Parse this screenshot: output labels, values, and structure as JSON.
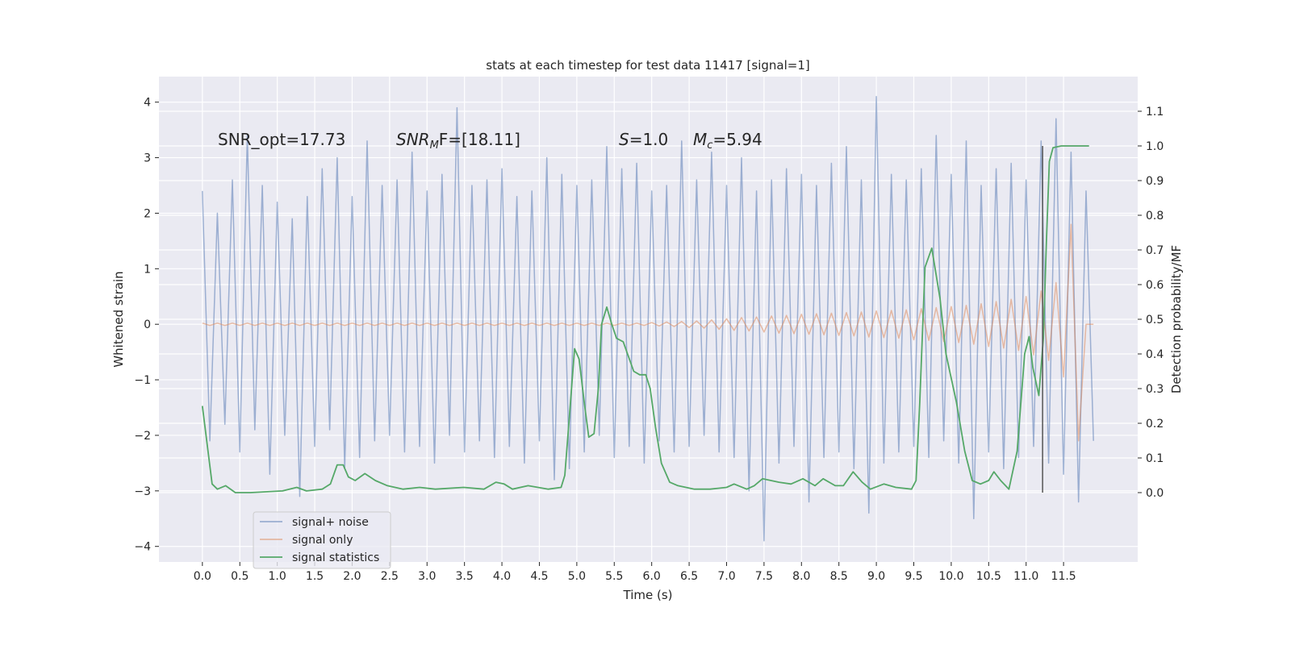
{
  "chart_data": {
    "type": "line",
    "title": "stats at each timestep for test data 11417 [signal=1]",
    "xlabel": "Time (s)",
    "ylabel": "Whitened strain",
    "y2label": "Detection probability/MF",
    "annotations": [
      [
        "SNR_opt=17.73"
      ],
      [
        "SNR",
        "M",
        "F=[18.11]"
      ],
      [
        "S",
        "=1.0"
      ],
      [
        "M",
        "c",
        "=5.94"
      ]
    ],
    "xlim": [
      -0.58,
      12.49
    ],
    "ylim": [
      -4.28,
      4.46
    ],
    "y2lim": [
      -0.2,
      1.2
    ],
    "xticks": [
      {
        "value": 0,
        "label": "0.0"
      },
      0.5,
      {
        "value": 1,
        "label": "1.0"
      },
      1.5,
      {
        "value": 2,
        "label": "2.0"
      },
      2.5,
      {
        "value": 3,
        "label": "3.0"
      },
      3.5,
      {
        "value": 4,
        "label": "4.0"
      },
      4.5,
      {
        "value": 5,
        "label": "5.0"
      },
      5.5,
      {
        "value": 6,
        "label": "6.0"
      },
      6.5,
      {
        "value": 7,
        "label": "7.0"
      },
      7.5,
      {
        "value": 8,
        "label": "8.0"
      },
      8.5,
      {
        "value": 9,
        "label": "9.0"
      },
      9.5,
      {
        "value": 10,
        "label": "10.0"
      },
      10.5,
      {
        "value": 11,
        "label": "11.0"
      },
      11.5
    ],
    "yticks": [
      {
        "value": -4,
        "label": "−4"
      },
      {
        "value": -3,
        "label": "−3"
      },
      {
        "value": -2,
        "label": "−2"
      },
      {
        "value": -1,
        "label": "−1"
      },
      0,
      1,
      2,
      3,
      4
    ],
    "y2ticks": [
      {
        "value": 0,
        "label": "0.0"
      },
      0.1,
      0.2,
      0.3,
      0.4,
      0.5,
      0.6,
      0.7,
      0.8,
      0.9,
      {
        "value": 1,
        "label": "1.0"
      },
      1.1
    ],
    "grid": true,
    "legend": "lower left",
    "vline_x": 11.22,
    "x": [
      0,
      0.1,
      0.2,
      0.3,
      0.4,
      0.5,
      0.6,
      0.7,
      0.8,
      0.9,
      1,
      1.1,
      1.2,
      1.3,
      1.4,
      1.5,
      1.6,
      1.7,
      1.8,
      1.9,
      2,
      2.1,
      2.2,
      2.3,
      2.4,
      2.5,
      2.6,
      2.7,
      2.8,
      2.9,
      3,
      3.1,
      3.2,
      3.3,
      3.4,
      3.5,
      3.6,
      3.7,
      3.8,
      3.9,
      4,
      4.1,
      4.2,
      4.3,
      4.4,
      4.5,
      4.6,
      4.7,
      4.8,
      4.9,
      5,
      5.1,
      5.2,
      5.3,
      5.4,
      5.5,
      5.6,
      5.7,
      5.8,
      5.9,
      6,
      6.1,
      6.2,
      6.3,
      6.4,
      6.5,
      6.6,
      6.7,
      6.8,
      6.9,
      7,
      7.1,
      7.2,
      7.3,
      7.4,
      7.5,
      7.6,
      7.7,
      7.8,
      7.9,
      8,
      8.1,
      8.2,
      8.3,
      8.4,
      8.5,
      8.6,
      8.7,
      8.8,
      8.9,
      9,
      9.1,
      9.2,
      9.3,
      9.4,
      9.5,
      9.6,
      9.7,
      9.8,
      9.9,
      10,
      10.1,
      10.2,
      10.3,
      10.4,
      10.5,
      10.6,
      10.7,
      10.8,
      10.9,
      11,
      11.1,
      11.2,
      11.3,
      11.4,
      11.5,
      11.6,
      11.7,
      11.8,
      11.9
    ],
    "series": [
      {
        "name": "signal+ noise",
        "color": "#4c72b0",
        "values": [
          2.4,
          -2.1,
          2.0,
          -1.8,
          2.6,
          -2.3,
          3.4,
          -1.9,
          2.5,
          -2.7,
          2.2,
          -2.0,
          1.9,
          -3.1,
          2.3,
          -2.2,
          2.8,
          -1.9,
          3.0,
          -2.6,
          2.3,
          -2.4,
          3.3,
          -2.1,
          2.5,
          -2.0,
          2.6,
          -2.3,
          3.1,
          -2.2,
          2.4,
          -2.5,
          2.7,
          -2.0,
          3.9,
          -2.3,
          2.5,
          -2.1,
          2.6,
          -2.4,
          2.8,
          -2.2,
          2.3,
          -2.5,
          2.4,
          -2.1,
          3.0,
          -2.8,
          2.7,
          -2.6,
          2.5,
          -2.3,
          2.6,
          -2.0,
          3.2,
          -2.4,
          2.8,
          -2.2,
          2.9,
          -2.5,
          2.4,
          -2.1,
          2.5,
          -2.3,
          3.3,
          -2.2,
          2.6,
          -2.0,
          3.1,
          -2.3,
          2.5,
          -2.4,
          3.0,
          -3.0,
          2.4,
          -3.9,
          2.6,
          -2.5,
          2.8,
          -2.2,
          2.7,
          -3.2,
          2.5,
          -2.4,
          2.9,
          -2.3,
          3.2,
          -2.6,
          2.6,
          -3.4,
          4.1,
          -2.5,
          2.7,
          -2.3,
          2.6,
          -2.2,
          2.8,
          -2.4,
          3.4,
          -2.1,
          2.7,
          -2.5,
          3.3,
          -3.5,
          2.5,
          -2.3,
          2.8,
          -2.6,
          2.9,
          -2.4,
          2.6,
          -2.2,
          3.3,
          -2.5,
          3.7,
          -2.7,
          3.1,
          -3.2,
          2.4,
          -2.1
        ]
      },
      {
        "name": "signal only",
        "color": "#dd8452",
        "values": [
          0.02,
          -0.02,
          0.02,
          -0.02,
          0.02,
          -0.02,
          0.02,
          -0.02,
          0.02,
          -0.02,
          0.02,
          -0.02,
          0.02,
          -0.02,
          0.02,
          -0.02,
          0.02,
          -0.02,
          0.02,
          -0.02,
          0.02,
          -0.02,
          0.02,
          -0.02,
          0.02,
          -0.02,
          0.02,
          -0.02,
          0.02,
          -0.02,
          0.02,
          -0.02,
          0.02,
          -0.02,
          0.02,
          -0.02,
          0.02,
          -0.02,
          0.02,
          -0.02,
          0.02,
          -0.02,
          0.02,
          -0.02,
          0.02,
          -0.02,
          0.02,
          -0.02,
          0.02,
          -0.02,
          0.02,
          -0.02,
          0.02,
          -0.02,
          0.02,
          -0.02,
          0.02,
          -0.02,
          0.02,
          -0.02,
          0.03,
          -0.03,
          0.04,
          -0.04,
          0.05,
          -0.06,
          0.06,
          -0.07,
          0.08,
          -0.09,
          0.1,
          -0.11,
          0.12,
          -0.12,
          0.13,
          -0.14,
          0.15,
          -0.16,
          0.16,
          -0.17,
          0.18,
          -0.18,
          0.19,
          -0.19,
          0.2,
          -0.2,
          0.21,
          -0.21,
          0.22,
          -0.23,
          0.24,
          -0.24,
          0.25,
          -0.25,
          0.26,
          -0.28,
          0.28,
          -0.29,
          0.3,
          -0.31,
          0.32,
          -0.33,
          0.34,
          -0.36,
          0.37,
          -0.4,
          0.41,
          -0.43,
          0.45,
          -0.47,
          0.5,
          -0.55,
          0.6,
          -0.65,
          0.75,
          -0.95,
          1.8,
          -2.1,
          0,
          0
        ]
      },
      {
        "name": "signal statistics",
        "color": "#55a868",
        "axis": "y2",
        "x": [
          0,
          0.13,
          0.2,
          0.31,
          0.44,
          0.64,
          1.07,
          1.26,
          1.39,
          1.6,
          1.71,
          1.8,
          1.88,
          1.95,
          2.04,
          2.17,
          2.31,
          2.47,
          2.68,
          2.9,
          3.11,
          3.49,
          3.76,
          3.92,
          4.03,
          4.14,
          4.35,
          4.62,
          4.79,
          4.84,
          4.89,
          4.97,
          5.03,
          5.1,
          5.16,
          5.23,
          5.29,
          5.33,
          5.4,
          5.46,
          5.53,
          5.62,
          5.76,
          5.84,
          5.92,
          5.98,
          6.05,
          6.13,
          6.24,
          6.35,
          6.57,
          6.78,
          7.0,
          7.1,
          7.27,
          7.37,
          7.48,
          7.7,
          7.86,
          8.02,
          8.18,
          8.29,
          8.45,
          8.56,
          8.69,
          8.81,
          8.92,
          9.1,
          9.26,
          9.47,
          9.53,
          9.58,
          9.65,
          9.74,
          9.85,
          9.93,
          10.07,
          10.18,
          10.28,
          10.39,
          10.5,
          10.57,
          10.66,
          10.77,
          10.88,
          10.98,
          11.04,
          11.09,
          11.17,
          11.23,
          11.27,
          11.31,
          11.36,
          11.47,
          11.84
        ],
        "values": [
          0.25,
          0.025,
          0.01,
          0.02,
          0.0,
          0.0,
          0.005,
          0.015,
          0.005,
          0.01,
          0.025,
          0.08,
          0.08,
          0.045,
          0.035,
          0.055,
          0.035,
          0.02,
          0.01,
          0.015,
          0.01,
          0.015,
          0.01,
          0.03,
          0.025,
          0.01,
          0.02,
          0.01,
          0.015,
          0.05,
          0.19,
          0.415,
          0.385,
          0.26,
          0.16,
          0.17,
          0.305,
          0.485,
          0.535,
          0.49,
          0.445,
          0.435,
          0.35,
          0.34,
          0.34,
          0.3,
          0.19,
          0.085,
          0.03,
          0.02,
          0.01,
          0.01,
          0.015,
          0.025,
          0.01,
          0.02,
          0.04,
          0.03,
          0.025,
          0.04,
          0.02,
          0.04,
          0.02,
          0.02,
          0.06,
          0.03,
          0.01,
          0.025,
          0.015,
          0.01,
          0.035,
          0.26,
          0.65,
          0.705,
          0.56,
          0.4,
          0.26,
          0.12,
          0.035,
          0.025,
          0.035,
          0.06,
          0.035,
          0.01,
          0.12,
          0.4,
          0.45,
          0.36,
          0.28,
          0.445,
          0.72,
          0.955,
          0.995,
          1.0,
          1.0
        ]
      }
    ]
  }
}
